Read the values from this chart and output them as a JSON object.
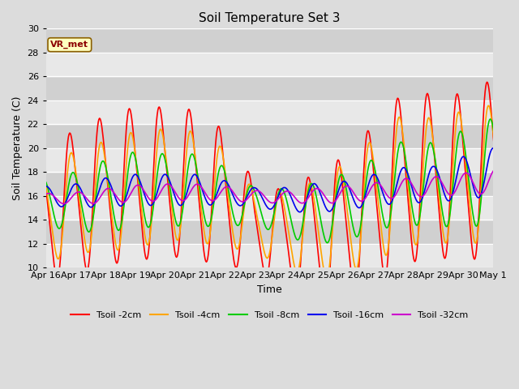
{
  "title": "Soil Temperature Set 3",
  "xlabel": "Time",
  "ylabel": "Soil Temperature (C)",
  "ylim": [
    10,
    30
  ],
  "background_color": "#dcdcdc",
  "plot_bg_color": "#dcdcdc",
  "grid_color": "#ffffff",
  "series": {
    "Tsoil -2cm": {
      "color": "#ff0000",
      "lw": 1.2
    },
    "Tsoil -4cm": {
      "color": "#ffa500",
      "lw": 1.2
    },
    "Tsoil -8cm": {
      "color": "#00cc00",
      "lw": 1.2
    },
    "Tsoil -16cm": {
      "color": "#0000ee",
      "lw": 1.2
    },
    "Tsoil -32cm": {
      "color": "#cc00cc",
      "lw": 1.2
    }
  },
  "annotation_text": "VR_met",
  "yticks": [
    10,
    12,
    14,
    16,
    18,
    20,
    22,
    24,
    26,
    28,
    30
  ],
  "band_even_color": "#e8e8e8",
  "band_odd_color": "#d0d0d0"
}
